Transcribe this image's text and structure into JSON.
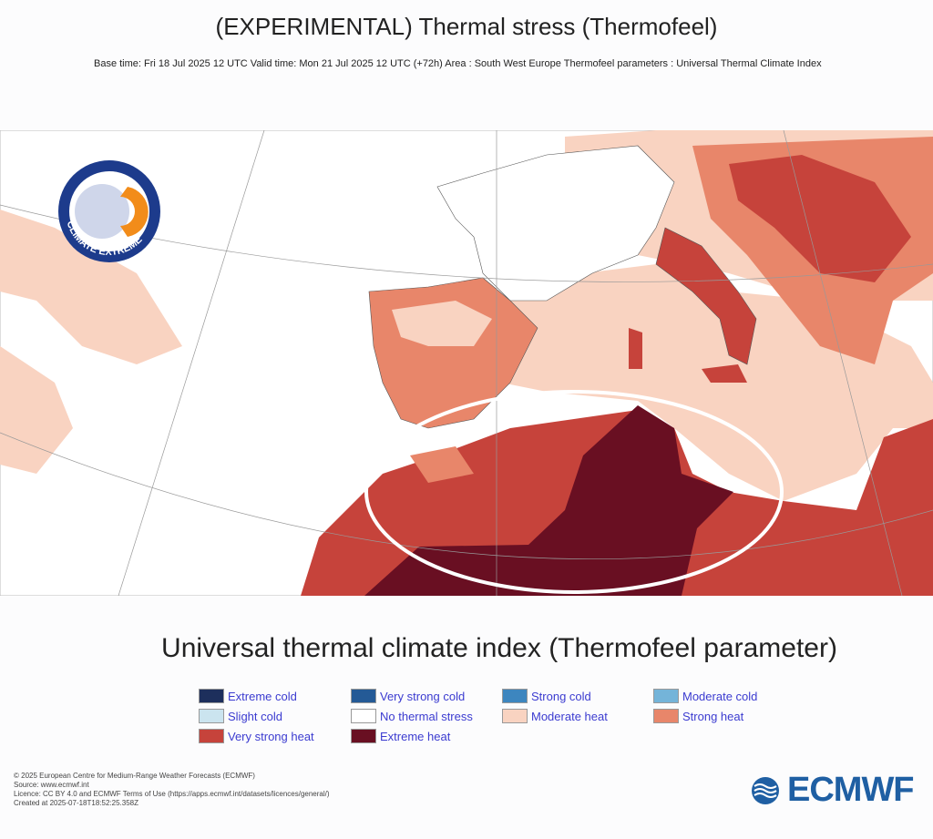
{
  "header": {
    "title": "(EXPERIMENTAL) Thermal stress (Thermofeel)",
    "subtitle": "Base time: Fri 18 Jul 2025 12 UTC Valid time: Mon 21 Jul 2025 12 UTC (+72h) Area : South West Europe Thermofeel parameters : Universal Thermal Climate Index"
  },
  "logo": {
    "text": "CLIMATE EXTREME"
  },
  "legend": {
    "title": "Universal thermal climate index (Thermofeel parameter)",
    "items": [
      {
        "label": "Extreme cold",
        "color": "#1d2f5c"
      },
      {
        "label": "Very strong cold",
        "color": "#245a96"
      },
      {
        "label": "Strong cold",
        "color": "#3d86bf"
      },
      {
        "label": "Moderate cold",
        "color": "#74b4d9"
      },
      {
        "label": "Slight cold",
        "color": "#cbe4ef"
      },
      {
        "label": "No thermal stress",
        "color": "#ffffff"
      },
      {
        "label": "Moderate heat",
        "color": "#f9d3c1"
      },
      {
        "label": "Strong heat",
        "color": "#e8866a"
      },
      {
        "label": "Very strong heat",
        "color": "#c6433b"
      },
      {
        "label": "Extreme heat",
        "color": "#690f22"
      }
    ]
  },
  "footer": {
    "lines": [
      "© 2025 European Centre for Medium-Range Weather Forecasts (ECMWF)",
      "Source: www.ecmwf.int",
      "Licence: CC BY 4.0 and ECMWF Terms of Use (https://apps.ecmwf.int/datasets/licences/general/)",
      "Created at 2025-07-18T18:52:25.358Z"
    ]
  },
  "brand": {
    "name": "ECMWF"
  }
}
